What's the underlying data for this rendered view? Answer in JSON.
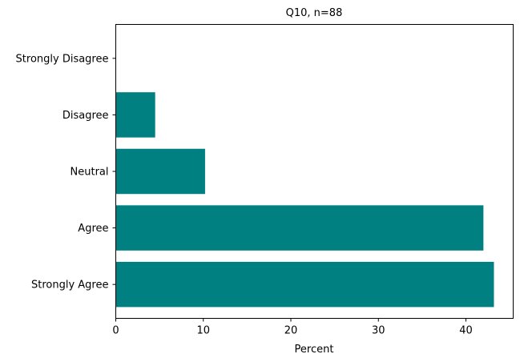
{
  "chart_data": {
    "type": "bar",
    "orientation": "horizontal",
    "title": "Q10, n=88",
    "xlabel": "Percent",
    "ylabel": "",
    "categories": [
      "Strongly Agree",
      "Agree",
      "Neutral",
      "Disagree",
      "Strongly Disagree"
    ],
    "values": [
      43.2,
      42.0,
      10.2,
      4.5,
      0.0
    ],
    "xlim": [
      0,
      45.4
    ],
    "xticks": [
      0,
      10,
      20,
      30,
      40
    ],
    "grid": false,
    "legend": "none",
    "bar_color": "#008080"
  }
}
